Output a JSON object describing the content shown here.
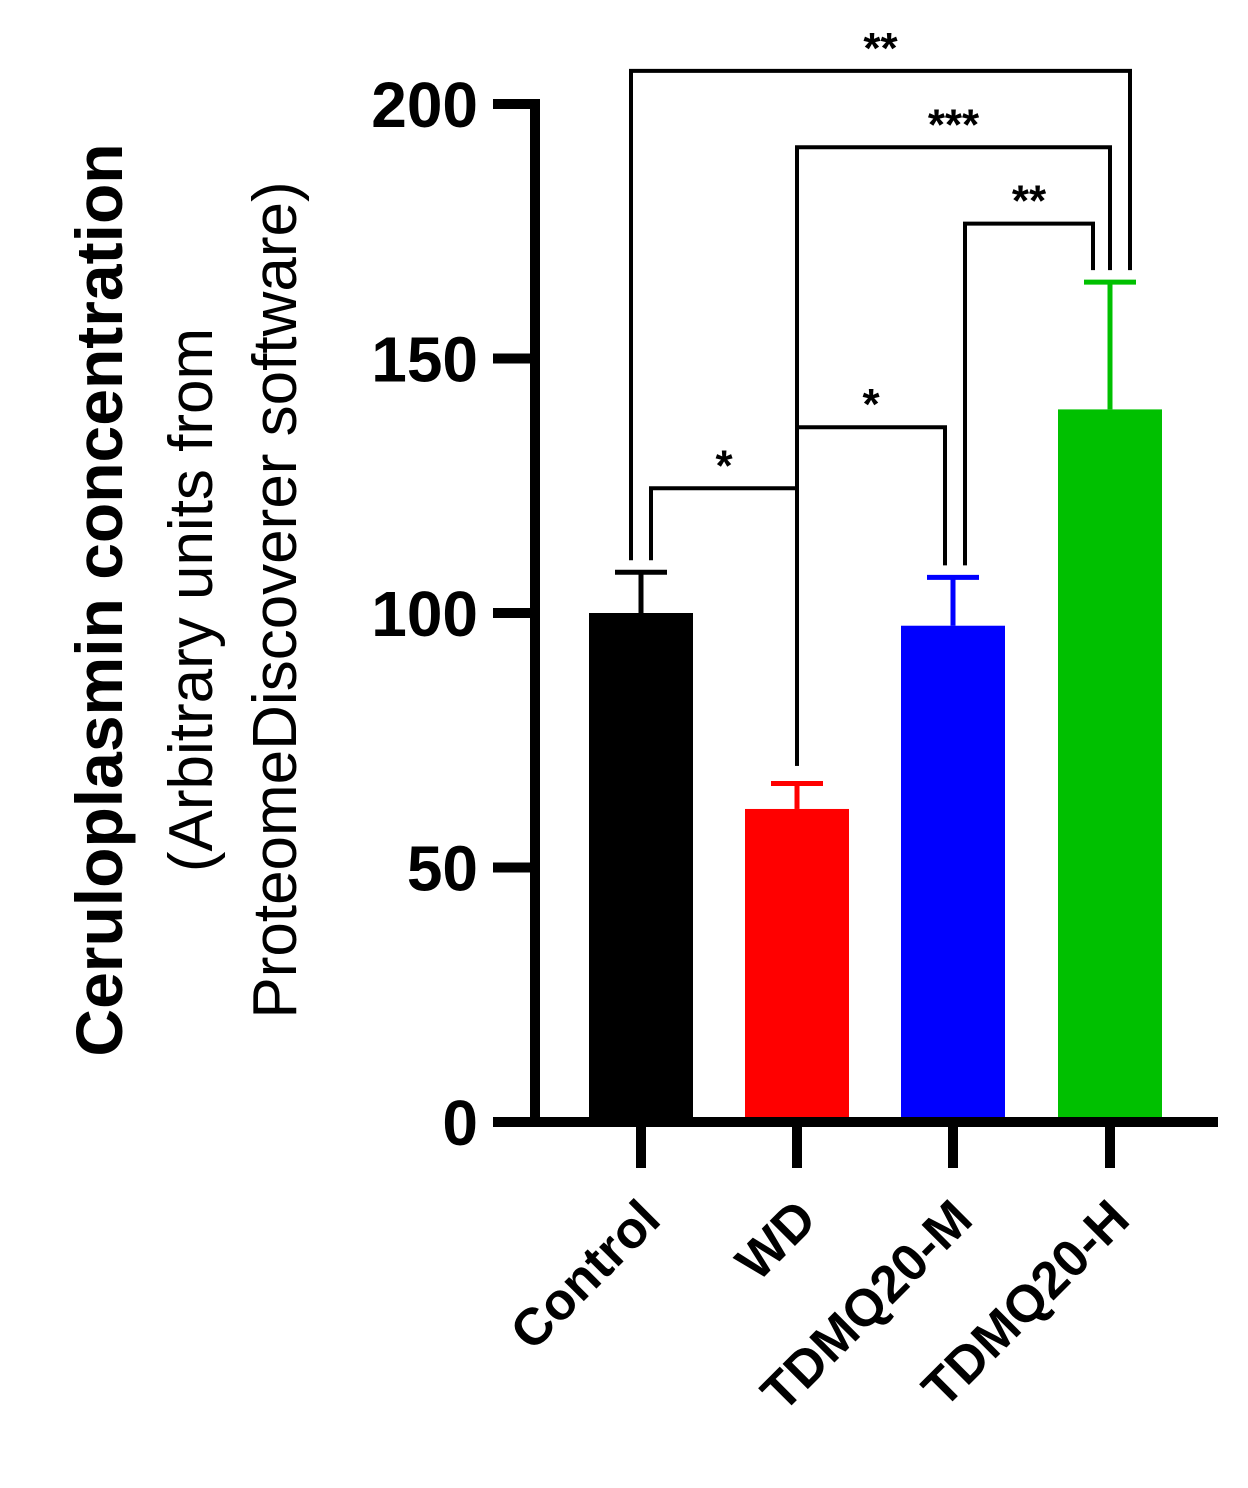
{
  "chart_data": {
    "type": "bar",
    "ylabel": "Ceruloplasmin concentration",
    "ylabel_lines": [
      "(Arbitrary units from",
      "ProteomeDiscoverer software)"
    ],
    "ylim": [
      0,
      200
    ],
    "yticks": [
      0,
      50,
      100,
      150,
      200
    ],
    "ytick_labels": [
      "0",
      "50",
      "100",
      "150",
      "200"
    ],
    "categories": [
      "Control",
      "WD",
      "TDMQ20-M",
      "TDMQ20-H"
    ],
    "values": [
      100,
      61.5,
      97.5,
      140
    ],
    "errors": [
      8,
      5,
      9.5,
      25
    ],
    "colors": [
      "#000000",
      "#ff0000",
      "#0000ff",
      "#00c000"
    ],
    "significance": [
      {
        "from": 0,
        "to": 1,
        "label": "*",
        "y": 124.5
      },
      {
        "from": 1,
        "to": 2,
        "label": "*",
        "y": 136.5
      },
      {
        "from": 2,
        "to": 3,
        "label": "**",
        "y": 176.5
      },
      {
        "from": 1,
        "to": 3,
        "label": "***",
        "y": 191.5
      },
      {
        "from": 0,
        "to": 3,
        "label": "**",
        "y": 206.5
      }
    ]
  }
}
